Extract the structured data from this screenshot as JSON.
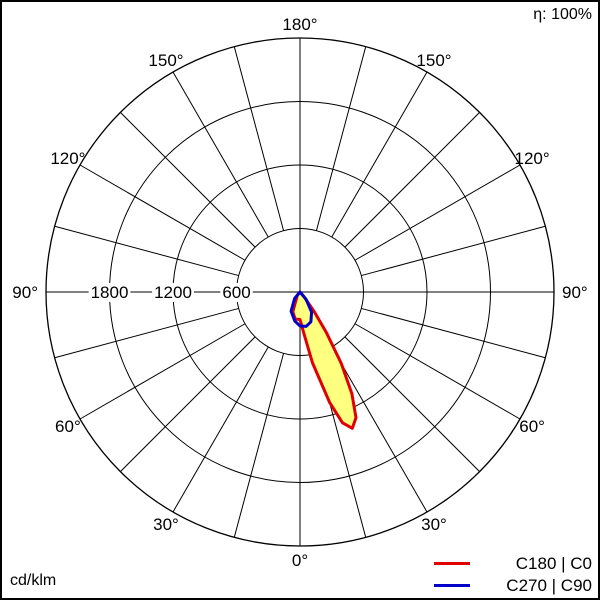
{
  "efficiency_label": "η: 100%",
  "unit_label": "cd/klm",
  "chart_data": {
    "type": "polar",
    "title": "",
    "angle_tick_labels": [
      "0°",
      "30°",
      "60°",
      "90°",
      "120°",
      "150°",
      "180°"
    ],
    "angle_ticks_deg": [
      0,
      30,
      60,
      90,
      120,
      150,
      180
    ],
    "radial_tick_labels": [
      "600",
      "1200",
      "1800"
    ],
    "radial_ticks": [
      600,
      1200,
      1800
    ],
    "rmax": 2400,
    "legend_position": "bottom-right",
    "fill_color": "#ffff80",
    "series": [
      {
        "name": "C180 | C0",
        "color": "#e00000",
        "points": [
          {
            "gamma": -180,
            "i": 0
          },
          {
            "gamma": -40,
            "i": 40
          },
          {
            "gamma": -20,
            "i": 200
          },
          {
            "gamma": -10,
            "i": 260
          },
          {
            "gamma": 0,
            "i": 260
          },
          {
            "gamma": 5,
            "i": 380
          },
          {
            "gamma": 10,
            "i": 680
          },
          {
            "gamma": 15,
            "i": 1080
          },
          {
            "gamma": 18,
            "i": 1300
          },
          {
            "gamma": 21,
            "i": 1380
          },
          {
            "gamma": 24,
            "i": 1300
          },
          {
            "gamma": 27,
            "i": 1080
          },
          {
            "gamma": 30,
            "i": 780
          },
          {
            "gamma": 33,
            "i": 460
          },
          {
            "gamma": 36,
            "i": 220
          },
          {
            "gamma": 40,
            "i": 60
          },
          {
            "gamma": 180,
            "i": 0
          }
        ]
      },
      {
        "name": "C270 | C90",
        "color": "#0000c8",
        "points": [
          {
            "gamma": -180,
            "i": 0
          },
          {
            "gamma": -40,
            "i": 80
          },
          {
            "gamma": -25,
            "i": 200
          },
          {
            "gamma": -10,
            "i": 280
          },
          {
            "gamma": 0,
            "i": 320
          },
          {
            "gamma": 10,
            "i": 330
          },
          {
            "gamma": 20,
            "i": 300
          },
          {
            "gamma": 30,
            "i": 220
          },
          {
            "gamma": 40,
            "i": 90
          },
          {
            "gamma": 180,
            "i": 0
          }
        ]
      }
    ]
  }
}
